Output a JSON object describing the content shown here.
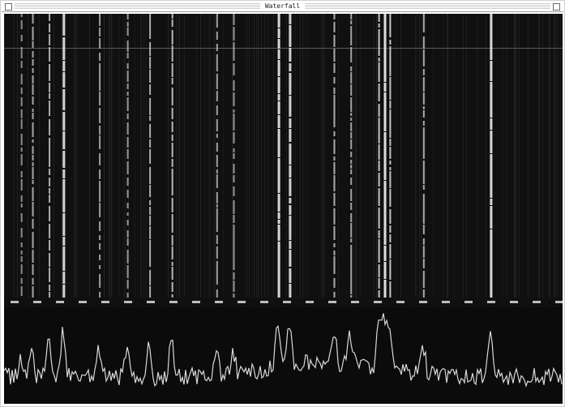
{
  "window": {
    "title": "Waterfall"
  },
  "colors": {
    "background": "#101010",
    "signal": "#e8e8e8",
    "trace": "#d9d9d9",
    "grid": "#2a2a2a"
  },
  "axis": {
    "tick_labels": [
      "",
      "",
      "",
      "",
      "",
      "",
      "",
      "",
      "",
      "",
      "",
      "",
      "",
      "",
      "",
      "",
      "",
      "",
      "",
      "",
      "",
      "",
      "",
      "",
      ""
    ]
  },
  "waterfall": {
    "carriers": [
      {
        "freq": 0.03,
        "strength": 0.35
      },
      {
        "freq": 0.05,
        "strength": 0.55
      },
      {
        "freq": 0.08,
        "strength": 0.65
      },
      {
        "freq": 0.105,
        "strength": 0.9
      },
      {
        "freq": 0.17,
        "strength": 0.5
      },
      {
        "freq": 0.22,
        "strength": 0.45
      },
      {
        "freq": 0.26,
        "strength": 0.6
      },
      {
        "freq": 0.3,
        "strength": 0.7
      },
      {
        "freq": 0.38,
        "strength": 0.5
      },
      {
        "freq": 0.41,
        "strength": 0.45
      },
      {
        "freq": 0.49,
        "strength": 0.95
      },
      {
        "freq": 0.51,
        "strength": 0.9
      },
      {
        "freq": 0.59,
        "strength": 0.6
      },
      {
        "freq": 0.62,
        "strength": 0.55
      },
      {
        "freq": 0.67,
        "strength": 0.8
      },
      {
        "freq": 0.68,
        "strength": 1.0
      },
      {
        "freq": 0.69,
        "strength": 0.8
      },
      {
        "freq": 0.75,
        "strength": 0.6
      },
      {
        "freq": 0.87,
        "strength": 0.95
      }
    ]
  }
}
